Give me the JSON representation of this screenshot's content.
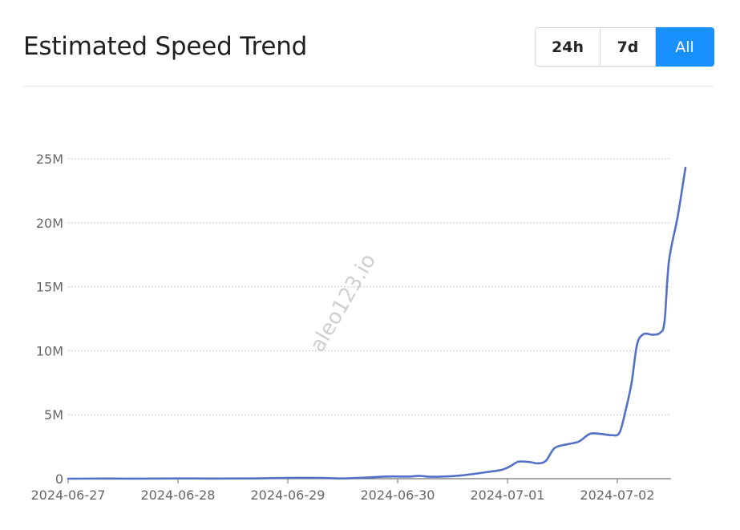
{
  "header": {
    "title": "Estimated Speed Trend",
    "ranges": [
      {
        "label": "24h",
        "active": false
      },
      {
        "label": "7d",
        "active": false
      },
      {
        "label": "All",
        "active": true
      }
    ]
  },
  "watermark": "aleo123.io",
  "colors": {
    "line": "#5470c6",
    "active_button": "#1890ff",
    "grid": "#cccccc"
  },
  "chart_data": {
    "type": "line",
    "title": "Estimated Speed Trend",
    "xlabel": "",
    "ylabel": "",
    "x_ticks": [
      "2024-06-27",
      "2024-06-28",
      "2024-06-29",
      "2024-06-30",
      "2024-07-01",
      "2024-07-02"
    ],
    "y_ticks": [
      "0",
      "5M",
      "10M",
      "15M",
      "20M",
      "25M"
    ],
    "ylim": [
      0,
      25000000
    ],
    "xlim_days": [
      0,
      5.5
    ],
    "grid": true,
    "series": [
      {
        "name": "",
        "points": [
          [
            0.0,
            0
          ],
          [
            0.3,
            10000
          ],
          [
            0.6,
            5000
          ],
          [
            1.0,
            20000
          ],
          [
            1.4,
            10000
          ],
          [
            1.7,
            20000
          ],
          [
            2.0,
            60000
          ],
          [
            2.3,
            60000
          ],
          [
            2.5,
            20000
          ],
          [
            2.7,
            80000
          ],
          [
            2.9,
            170000
          ],
          [
            3.1,
            170000
          ],
          [
            3.2,
            220000
          ],
          [
            3.3,
            150000
          ],
          [
            3.5,
            200000
          ],
          [
            3.6,
            270000
          ],
          [
            3.8,
            500000
          ],
          [
            3.95,
            700000
          ],
          [
            4.03,
            1000000
          ],
          [
            4.1,
            1330000
          ],
          [
            4.2,
            1300000
          ],
          [
            4.28,
            1200000
          ],
          [
            4.35,
            1400000
          ],
          [
            4.43,
            2400000
          ],
          [
            4.55,
            2700000
          ],
          [
            4.65,
            2900000
          ],
          [
            4.75,
            3500000
          ],
          [
            4.85,
            3500000
          ],
          [
            4.95,
            3400000
          ],
          [
            5.02,
            3600000
          ],
          [
            5.08,
            5500000
          ],
          [
            5.13,
            7500000
          ],
          [
            5.18,
            10500000
          ],
          [
            5.24,
            11300000
          ],
          [
            5.32,
            11250000
          ],
          [
            5.39,
            11400000
          ],
          [
            5.43,
            12300000
          ],
          [
            5.47,
            17000000
          ],
          [
            5.55,
            20500000
          ],
          [
            5.62,
            24300000
          ]
        ]
      }
    ]
  }
}
